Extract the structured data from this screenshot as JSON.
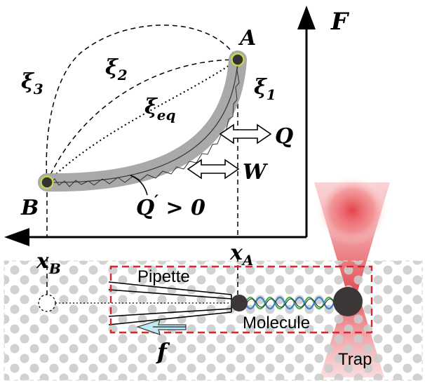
{
  "axes": {
    "x_label": "",
    "y_label": "F"
  },
  "points": {
    "A": "A",
    "B": "B",
    "x_A": "x",
    "x_A_sub": "A",
    "x_B": "x",
    "x_B_sub": "B"
  },
  "paths": {
    "xi1": "ξ",
    "xi1_sub": "1",
    "xi2": "ξ",
    "xi2_sub": "2",
    "xi3": "ξ",
    "xi3_sub": "3",
    "xieq": "ξ",
    "xieq_sub": "eq"
  },
  "energy_labels": {
    "Q": "Q",
    "W": "W",
    "Qprime": "Q",
    "Qprime_mark": "′",
    "Qprime_relation": " > 0"
  },
  "setup": {
    "pipette": "Pipette",
    "molecule": "Molecule",
    "trap": "Trap",
    "force": "f"
  },
  "colors": {
    "band": "#a9a9a9",
    "point_fill": "#333333",
    "point_ring": "#c8d44a",
    "trap_red": "#e8454b",
    "dash_box": "#d8262e",
    "bead": "#3c3636",
    "arrow_cyan": "#bfe9f3",
    "dots": "#cccccc",
    "helix_green": "#4caf50",
    "helix_blue": "#3a7fc8"
  }
}
